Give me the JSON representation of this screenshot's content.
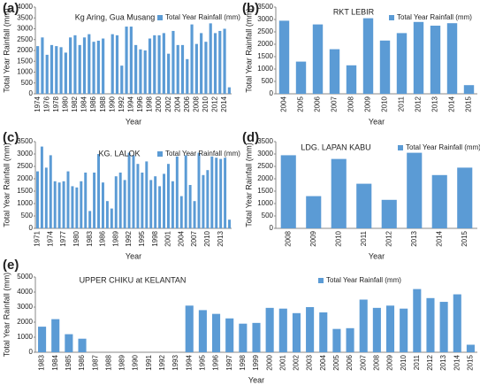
{
  "chart_data": [
    {
      "type": "bar",
      "panel_label": "(a)",
      "title": "Kg Aring, Gua Musang",
      "x_label": "Year",
      "y_label": "Total Year Rainfall (mm)",
      "categories": [
        "1974",
        null,
        "1976",
        null,
        "1978",
        null,
        "1980",
        null,
        "1982",
        null,
        "1984",
        null,
        "1986",
        null,
        "1988",
        null,
        "1990",
        null,
        "1992",
        null,
        "1994",
        null,
        "1996",
        null,
        "1998",
        null,
        "2000",
        null,
        "2002",
        null,
        "2004",
        null,
        "2006",
        null,
        "2008",
        null,
        "2010",
        null,
        "2012",
        null,
        "2014",
        null
      ],
      "series": [
        {
          "name": "Total Year Rainfall (mm)",
          "color": "#5b9bd5",
          "values": [
            2200,
            2600,
            1800,
            2250,
            2200,
            2150,
            1900,
            2600,
            2700,
            2250,
            2600,
            2750,
            2400,
            2450,
            2550,
            null,
            2750,
            2700,
            1300,
            3100,
            3100,
            2250,
            2050,
            2000,
            2550,
            2700,
            2700,
            2800,
            1850,
            2900,
            2250,
            2250,
            1600,
            3200,
            2300,
            2800,
            2400,
            3250,
            2800,
            2900,
            3000,
            300
          ]
        }
      ],
      "ylim": [
        0,
        4000
      ],
      "yticks": [
        0,
        500,
        1000,
        1500,
        2000,
        2500,
        3000,
        3500,
        4000
      ],
      "legend": "top-right"
    },
    {
      "type": "bar",
      "panel_label": "(b)",
      "title": "RKT LEBIR",
      "x_label": "Year",
      "y_label": "Total Year Rainfall (mm)",
      "categories": [
        "2004",
        "2005",
        "2006",
        "2007",
        "2008",
        "2009",
        "2010",
        "2011",
        "2012",
        "2013",
        "2014",
        "2015"
      ],
      "series": [
        {
          "name": "Total Year Rainfall (mm)",
          "color": "#5b9bd5",
          "values": [
            2950,
            1300,
            2800,
            1800,
            1150,
            3050,
            2150,
            2450,
            2900,
            2750,
            2850,
            350
          ]
        }
      ],
      "ylim": [
        0,
        3500
      ],
      "yticks": [
        0,
        500,
        1000,
        1500,
        2000,
        2500,
        3000,
        3500
      ],
      "legend": "top-right"
    },
    {
      "type": "bar",
      "panel_label": "(c)",
      "title": "KG. LALOK",
      "x_label": "Year",
      "y_label": "Total Year Rainfall (mm)",
      "categories": [
        "1971",
        null,
        null,
        "1974",
        null,
        null,
        "1977",
        null,
        null,
        "1980",
        null,
        null,
        "1983",
        null,
        null,
        "1986",
        null,
        null,
        "1989",
        null,
        null,
        "1992",
        null,
        null,
        "1995",
        null,
        null,
        "1998",
        null,
        null,
        "2001",
        null,
        null,
        "2004",
        null,
        null,
        "2007",
        null,
        null,
        "2010",
        null,
        null,
        "2013",
        null,
        null
      ],
      "series": [
        {
          "name": "Total Year Rainfall (mm)",
          "color": "#5b9bd5",
          "values": [
            2300,
            3300,
            2450,
            2950,
            1900,
            1850,
            1900,
            2300,
            1700,
            1650,
            1900,
            2250,
            700,
            2250,
            3000,
            1850,
            1100,
            800,
            2100,
            2250,
            1950,
            3050,
            2950,
            2600,
            2250,
            2700,
            1950,
            2100,
            1700,
            2200,
            2600,
            1900,
            2900,
            1300,
            2950,
            1750,
            1100,
            3050,
            2150,
            2350,
            2900,
            2850,
            2800,
            2850,
            350
          ]
        }
      ],
      "ylim": [
        0,
        3500
      ],
      "yticks": [
        0,
        500,
        1000,
        1500,
        2000,
        2500,
        3000,
        3500
      ],
      "legend": "top-right"
    },
    {
      "type": "bar",
      "panel_label": "(d)",
      "title": "LDG. LAPAN KABU",
      "x_label": "Year",
      "y_label": "Total Year Rainfall (mm)",
      "categories": [
        "2008",
        "2009",
        "2010",
        "2011",
        "2012",
        "2013",
        "2014",
        "2015"
      ],
      "series": [
        {
          "name": "Total Year Rainfall (mm)",
          "color": "#5b9bd5",
          "values": [
            2950,
            1300,
            2800,
            1800,
            1150,
            3050,
            2150,
            2450
          ]
        }
      ],
      "ylim": [
        0,
        3500
      ],
      "yticks": [
        0,
        500,
        1000,
        1500,
        2000,
        2500,
        3000,
        3500
      ],
      "legend": "top-right"
    },
    {
      "type": "bar",
      "panel_label": "(e)",
      "title": "UPPER CHIKU at KELANTAN",
      "x_label": "Year",
      "y_label": "Total Year Rainfall (mm)",
      "categories": [
        "1983",
        "1984",
        "1985",
        "1986",
        "1987",
        "1988",
        "1989",
        "1990",
        "1991",
        "1992",
        "1993",
        "1994",
        "1995",
        "1996",
        "1997",
        "1998",
        "1999",
        "2000",
        "2001",
        "2002",
        "2003",
        "2004",
        "2005",
        "2006",
        "2007",
        "2008",
        "2009",
        "2010",
        "2011",
        "2012",
        "2013",
        "2014",
        "2015"
      ],
      "series": [
        {
          "name": "Total Year Rainfall (mm)",
          "color": "#5b9bd5",
          "values": [
            1700,
            2200,
            1200,
            900,
            null,
            null,
            null,
            null,
            null,
            null,
            null,
            3100,
            2800,
            2550,
            2250,
            1900,
            1950,
            2950,
            2900,
            2600,
            3000,
            2650,
            1550,
            1600,
            3500,
            2950,
            3100,
            2900,
            4200,
            3600,
            3350,
            3850,
            500
          ]
        }
      ],
      "ylim": [
        0,
        5000
      ],
      "yticks": [
        0,
        1000,
        2000,
        3000,
        4000,
        5000
      ],
      "legend": "top-right"
    }
  ]
}
